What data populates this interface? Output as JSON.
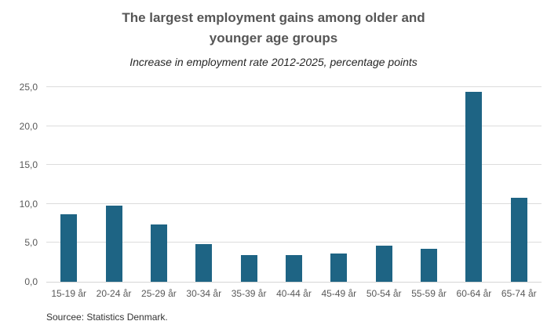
{
  "header": {
    "title_line1": "The largest employment gains among older and",
    "title_line2": "younger age groups",
    "subtitle": "Increase in employment rate 2012-2025, percentage points"
  },
  "footer": {
    "source": "Sourcee: Statistics Denmark."
  },
  "chart_data": {
    "type": "bar",
    "title": "The largest employment gains among older and younger age groups",
    "subtitle": "Increase in employment rate 2012-2025, percentage points",
    "categories": [
      "15-19 år",
      "20-24 år",
      "25-29 år",
      "30-34 år",
      "35-39 år",
      "40-44 år",
      "45-49 år",
      "50-54 år",
      "55-59 år",
      "60-64 år",
      "65-74 år"
    ],
    "values": [
      8.7,
      9.8,
      7.4,
      4.8,
      3.4,
      3.4,
      3.6,
      4.6,
      4.2,
      24.4,
      10.8
    ],
    "xlabel": "",
    "ylabel": "",
    "ylim": [
      0,
      25
    ],
    "yticks": [
      0,
      5,
      10,
      15,
      20,
      25
    ],
    "ytick_labels": [
      "0,0",
      "5,0",
      "10,0",
      "15,0",
      "20,0",
      "25,0"
    ],
    "grid": true,
    "legend": false,
    "bar_color": "#1e6484",
    "gridline_color": "#dcdcdc",
    "source": "Sourcee: Statistics Denmark."
  }
}
